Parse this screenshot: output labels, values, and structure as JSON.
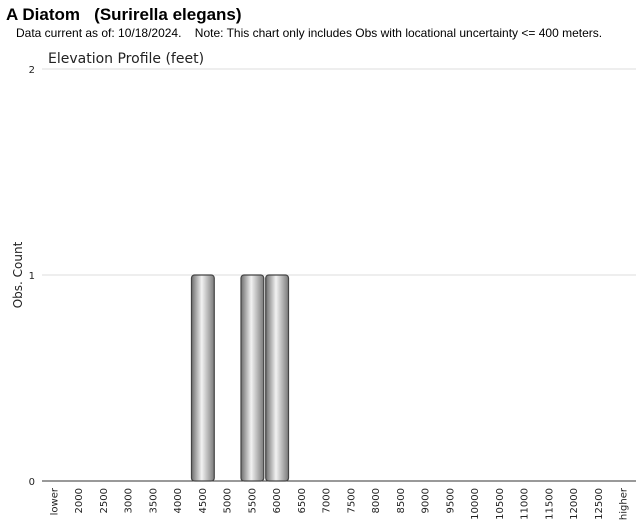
{
  "header": {
    "title": "A Diatom   (Surirella elegans)",
    "subtitle": "Data current as of: 10/18/2024.    Note: This chart only includes Obs with locational uncertainty <= 400 meters."
  },
  "chart_data": {
    "type": "bar",
    "title": "Elevation Profile (feet)",
    "xlabel": "",
    "ylabel": "Obs. Count",
    "categories": [
      "lower",
      "2000",
      "2500",
      "3000",
      "3500",
      "4000",
      "4500",
      "5000",
      "5500",
      "6000",
      "6500",
      "7000",
      "7500",
      "8000",
      "8500",
      "9000",
      "9500",
      "10000",
      "10500",
      "11000",
      "11500",
      "12000",
      "12500",
      "higher"
    ],
    "values": [
      0,
      0,
      0,
      0,
      0,
      0,
      1,
      0,
      1,
      1,
      0,
      0,
      0,
      0,
      0,
      0,
      0,
      0,
      0,
      0,
      0,
      0,
      0,
      0
    ],
    "ylim": [
      0,
      2
    ],
    "yticks": [
      0,
      1,
      2
    ],
    "grid": true,
    "bar_color": "#bdbdbd"
  }
}
